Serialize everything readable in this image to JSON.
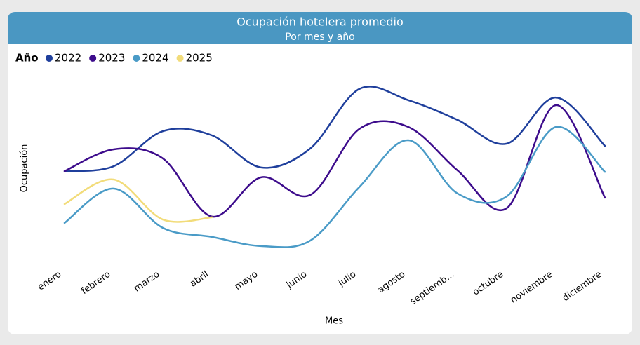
{
  "chart_data": {
    "type": "line",
    "title": "Ocupación hotelera promedio",
    "subtitle": "Por mes y año",
    "legend_title": "Año",
    "x_label": "Mes",
    "y_label": "Ocupación",
    "categories": [
      "enero",
      "febrero",
      "marzo",
      "abril",
      "mayo",
      "junio",
      "julio",
      "agosto",
      "septiemb...",
      "octubre",
      "noviembre",
      "diciembre"
    ],
    "ylim": [
      0,
      80
    ],
    "legend": "top-left",
    "smooth": true,
    "series": [
      {
        "name": "2022",
        "color": "#1f3f9c",
        "values": [
          37.4,
          39.4,
          53.7,
          52,
          38.9,
          46.6,
          70.9,
          66.3,
          58.3,
          48.6,
          67.4,
          47.7
        ]
      },
      {
        "name": "2023",
        "color": "#3d0c8c",
        "values": [
          37.4,
          46.3,
          42.6,
          18.9,
          34.9,
          27.7,
          54.6,
          55.4,
          37.7,
          22.3,
          64.3,
          26.6
        ]
      },
      {
        "name": "2024",
        "color": "#4a9bc7",
        "values": [
          16.3,
          30.3,
          14.3,
          10.6,
          6.9,
          9.1,
          30.9,
          50,
          28.3,
          27.1,
          55.4,
          37.1
        ]
      },
      {
        "name": "2025",
        "color": "#f2dc7a",
        "values": [
          24,
          34,
          17.7,
          18.6,
          null,
          null,
          null,
          null,
          null,
          null,
          null,
          null
        ]
      }
    ]
  }
}
